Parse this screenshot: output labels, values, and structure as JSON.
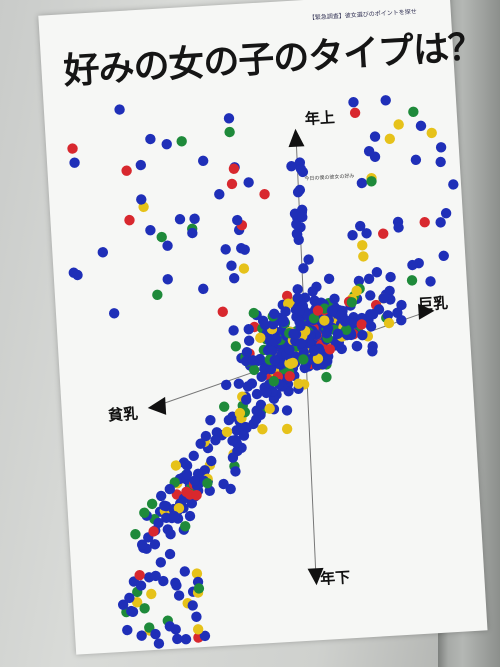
{
  "poster": {
    "title": "好みの女の子のタイプは？",
    "subtitle": "【緊急調査】彼女選びのポイントを探せ",
    "center_note": "今日の僕の彼女の好み",
    "axis_top": "年上",
    "axis_bottom": "年下",
    "axis_left": "貧乳",
    "axis_right": "巨乳"
  },
  "colors": {
    "blue": "#1f2fb8",
    "green": "#1e8a3a",
    "red": "#d8282e",
    "yellow": "#e6c21a",
    "paper": "#f6f7f5"
  }
}
